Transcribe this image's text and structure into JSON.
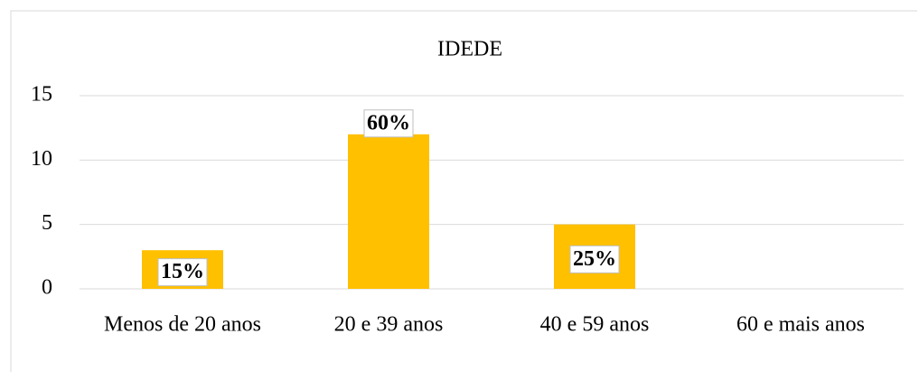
{
  "chart_data": {
    "type": "bar",
    "title": "IDEDE",
    "categories": [
      "Menos de 20 anos",
      "20 e 39 anos",
      "40 e 59 anos",
      "60 e mais anos"
    ],
    "values": [
      3,
      12,
      5,
      0
    ],
    "value_labels": [
      "15%",
      "60%",
      "25%",
      null
    ],
    "color": "#ffc000",
    "ylim": [
      0,
      15
    ],
    "yticks": [
      0,
      5,
      10,
      15
    ],
    "grid": true
  }
}
